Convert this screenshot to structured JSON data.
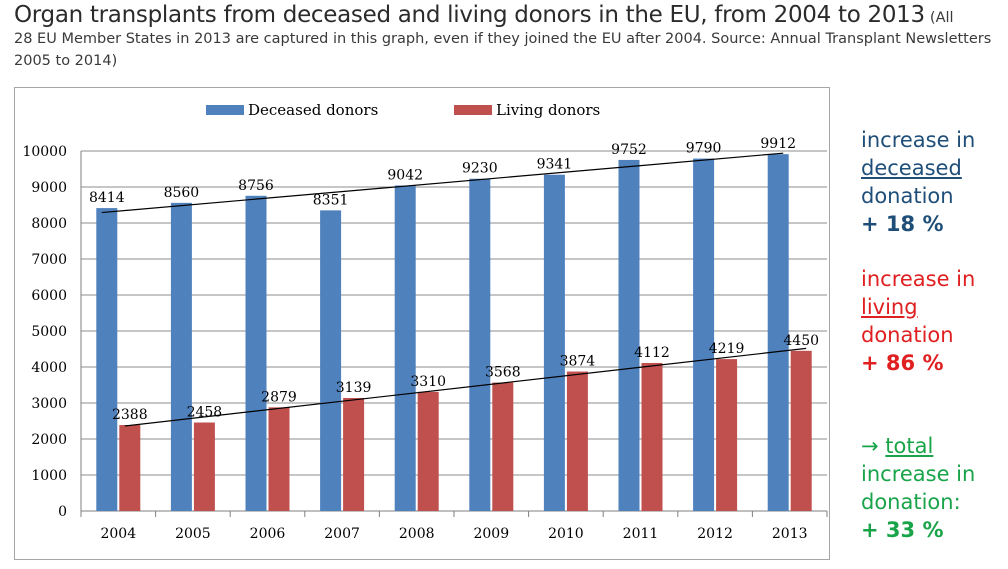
{
  "heading": {
    "title": "Organ transplants from deceased and living donors in the EU, from 2004 to 2013",
    "note_start": "(All",
    "note_rest": "28 EU Member States in 2013 are captured in this graph, even if they joined the EU after 2004. Source: Annual Transplant Newsletters 2005 to 2014)"
  },
  "chart_data": {
    "type": "bar",
    "categories": [
      "2004",
      "2005",
      "2006",
      "2007",
      "2008",
      "2009",
      "2010",
      "2011",
      "2012",
      "2013"
    ],
    "series": [
      {
        "name": "Deceased donors",
        "color": "#4f81bd",
        "values": [
          8414,
          8560,
          8756,
          8351,
          9042,
          9230,
          9341,
          9752,
          9790,
          9912
        ]
      },
      {
        "name": "Living donors",
        "color": "#c0504d",
        "values": [
          2388,
          2458,
          2879,
          3139,
          3310,
          3568,
          3874,
          4112,
          4219,
          4450
        ]
      }
    ],
    "yticks": [
      0,
      1000,
      2000,
      3000,
      4000,
      5000,
      6000,
      7000,
      8000,
      9000,
      10000
    ],
    "ylim": [
      0,
      10000
    ],
    "grid": true,
    "legend": "top",
    "trendlines": true
  },
  "side": {
    "deceased": {
      "l1": "increase in",
      "l2": "deceased",
      "l3": "donation",
      "value": "+ 18 %",
      "color": "#1f4e79"
    },
    "living": {
      "l1": "increase in",
      "l2": "living",
      "l3": "donation",
      "value": "+ 86 %",
      "color": "#e02020"
    },
    "total": {
      "arrow": "→",
      "l1": "total",
      "l2": "increase in",
      "l3": "donation:",
      "value": "+ 33 %",
      "color": "#1aa44a"
    }
  }
}
